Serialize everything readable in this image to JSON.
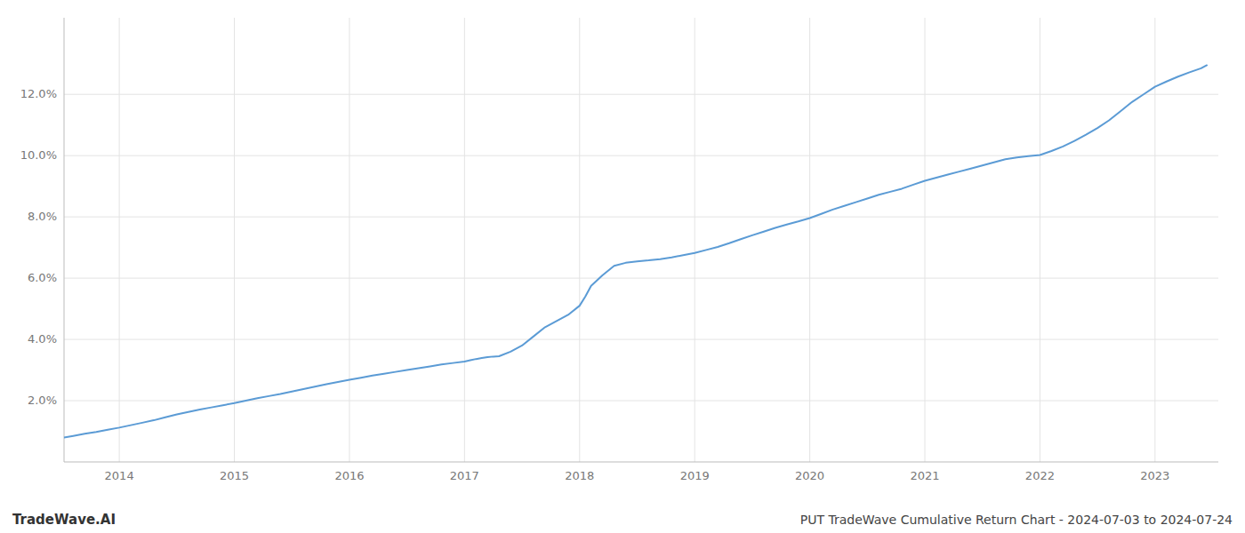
{
  "chart_data": {
    "type": "line",
    "title": "PUT TradeWave Cumulative Return Chart - 2024-07-03 to 2024-07-24",
    "annotations": [
      "TradeWave.AI"
    ],
    "color": "#5b9bd5",
    "x": [
      2013.52,
      2013.6,
      2013.7,
      2013.8,
      2013.9,
      2014.0,
      2014.1,
      2014.2,
      2014.3,
      2014.4,
      2014.5,
      2014.6,
      2014.7,
      2014.8,
      2014.9,
      2015.0,
      2015.1,
      2015.2,
      2015.3,
      2015.4,
      2015.5,
      2015.6,
      2015.7,
      2015.8,
      2015.9,
      2016.0,
      2016.1,
      2016.2,
      2016.3,
      2016.4,
      2016.5,
      2016.6,
      2016.7,
      2016.8,
      2016.9,
      2017.0,
      2017.05,
      2017.1,
      2017.15,
      2017.2,
      2017.25,
      2017.3,
      2017.4,
      2017.5,
      2017.6,
      2017.7,
      2017.8,
      2017.9,
      2018.0,
      2018.05,
      2018.1,
      2018.2,
      2018.3,
      2018.4,
      2018.5,
      2018.6,
      2018.7,
      2018.8,
      2018.9,
      2019.0,
      2019.1,
      2019.2,
      2019.3,
      2019.4,
      2019.5,
      2019.6,
      2019.7,
      2019.8,
      2019.9,
      2020.0,
      2020.1,
      2020.2,
      2020.3,
      2020.4,
      2020.5,
      2020.6,
      2020.7,
      2020.8,
      2020.9,
      2021.0,
      2021.1,
      2021.2,
      2021.3,
      2021.4,
      2021.5,
      2021.6,
      2021.7,
      2021.8,
      2021.9,
      2022.0,
      2022.1,
      2022.2,
      2022.3,
      2022.4,
      2022.5,
      2022.6,
      2022.7,
      2022.8,
      2022.9,
      2023.0,
      2023.1,
      2023.2,
      2023.3,
      2023.4,
      2023.45
    ],
    "values": [
      0.008,
      0.0085,
      0.0092,
      0.0098,
      0.0105,
      0.0112,
      0.012,
      0.0128,
      0.0136,
      0.0146,
      0.0155,
      0.0163,
      0.0171,
      0.0178,
      0.0185,
      0.0192,
      0.02,
      0.0208,
      0.0215,
      0.0222,
      0.023,
      0.0238,
      0.0246,
      0.0254,
      0.0261,
      0.0268,
      0.0275,
      0.0282,
      0.0288,
      0.0294,
      0.03,
      0.0306,
      0.0312,
      0.0318,
      0.0323,
      0.0328,
      0.0332,
      0.0336,
      0.0339,
      0.0342,
      0.0344,
      0.0345,
      0.036,
      0.038,
      0.041,
      0.044,
      0.046,
      0.048,
      0.051,
      0.054,
      0.0575,
      0.061,
      0.064,
      0.065,
      0.0655,
      0.0658,
      0.0662,
      0.0668,
      0.0675,
      0.0682,
      0.0692,
      0.0702,
      0.0714,
      0.0727,
      0.074,
      0.0752,
      0.0764,
      0.0775,
      0.0785,
      0.0796,
      0.081,
      0.0824,
      0.0836,
      0.0848,
      0.086,
      0.0872,
      0.0882,
      0.0892,
      0.0905,
      0.0918,
      0.0928,
      0.0938,
      0.0948,
      0.0958,
      0.0968,
      0.0978,
      0.0988,
      0.0994,
      0.0998,
      0.1002,
      0.1015,
      0.103,
      0.1048,
      0.1068,
      0.109,
      0.1115,
      0.1145,
      0.1175,
      0.12,
      0.1225,
      0.1242,
      0.1258,
      0.1272,
      0.1285,
      0.1295
    ],
    "xlim": [
      2013.52,
      2023.55
    ],
    "ylim": [
      0,
      0.145
    ],
    "xticks": [
      2014,
      2015,
      2016,
      2017,
      2018,
      2019,
      2020,
      2021,
      2022,
      2023
    ],
    "yticks": [
      {
        "value": 0.02,
        "label": "2.0%"
      },
      {
        "value": 0.04,
        "label": "4.0%"
      },
      {
        "value": 0.06,
        "label": "6.0%"
      },
      {
        "value": 0.08,
        "label": "8.0%"
      },
      {
        "value": 0.1,
        "label": "10.0%"
      },
      {
        "value": 0.12,
        "label": "12.0%"
      }
    ],
    "grid": true
  }
}
